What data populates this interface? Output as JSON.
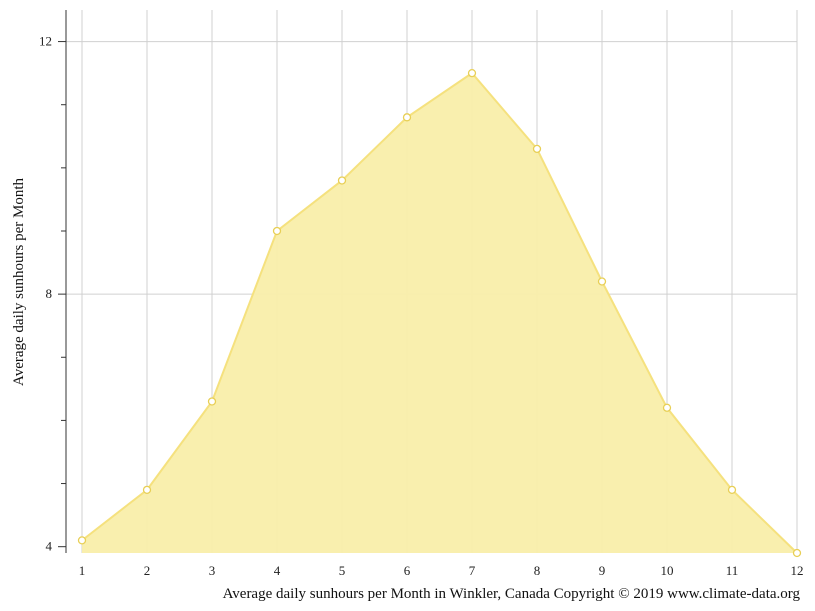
{
  "chart_data": {
    "type": "area",
    "x": [
      1,
      2,
      3,
      4,
      5,
      6,
      7,
      8,
      9,
      10,
      11,
      12
    ],
    "values": [
      4.1,
      4.9,
      6.3,
      9.0,
      9.8,
      10.8,
      11.5,
      10.3,
      8.2,
      6.2,
      4.9,
      3.9
    ],
    "xlabel": "Average daily sunhours per Month in Winkler, Canada Copyright © 2019 www.climate-data.org",
    "ylabel": "Average daily sunhours per Month",
    "xlim": [
      1,
      12
    ],
    "ylim": [
      3.9,
      12.5
    ],
    "x_ticks": [
      1,
      2,
      3,
      4,
      5,
      6,
      7,
      8,
      9,
      10,
      11,
      12
    ],
    "y_ticks_labeled": [
      4,
      8,
      12
    ],
    "y_minor_ticks": [
      5,
      6,
      7,
      9,
      10,
      11
    ],
    "grid": true,
    "colors": {
      "fill": "#f9eeaa",
      "line": "#f5e17e",
      "marker_fill": "#ffffff",
      "marker_stroke": "#e8cf55",
      "grid": "#d0d0d0",
      "axis": "#333333"
    }
  }
}
